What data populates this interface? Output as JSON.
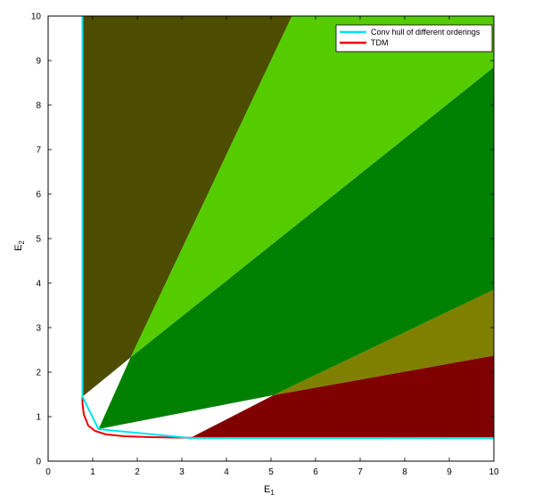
{
  "chart_data": {
    "type": "area",
    "xlabel": "E",
    "xlabel_sub": "1",
    "ylabel": "E",
    "ylabel_sub": "2",
    "xlim": [
      0,
      10
    ],
    "ylim": [
      0,
      10
    ],
    "xticks": [
      "0",
      "1",
      "2",
      "3",
      "4",
      "5",
      "6",
      "7",
      "8",
      "9",
      "10"
    ],
    "yticks": [
      "0",
      "1",
      "2",
      "3",
      "4",
      "5",
      "6",
      "7",
      "8",
      "9",
      "10"
    ],
    "grid": false,
    "legend_position": "top-right",
    "regions": [
      {
        "color": "#4d4d00",
        "points": [
          [
            0.77,
            10
          ],
          [
            5.47,
            10
          ],
          [
            1.85,
            2.33
          ],
          [
            1.13,
            0.72
          ],
          [
            0.77,
            1.45
          ]
        ]
      },
      {
        "color": "#55cc00",
        "points": [
          [
            5.47,
            10
          ],
          [
            10,
            10
          ],
          [
            10,
            8.85
          ],
          [
            1.85,
            2.33
          ]
        ]
      },
      {
        "color": "#008000",
        "points": [
          [
            1.85,
            2.33
          ],
          [
            10,
            8.85
          ],
          [
            10,
            3.85
          ],
          [
            5.05,
            1.48
          ],
          [
            1.13,
            0.72
          ]
        ]
      },
      {
        "color": "#808000",
        "points": [
          [
            5.05,
            1.48
          ],
          [
            10,
            3.85
          ],
          [
            10,
            2.37
          ]
        ]
      },
      {
        "color": "#800000",
        "points": [
          [
            5.05,
            1.48
          ],
          [
            10,
            2.37
          ],
          [
            10,
            0.52
          ],
          [
            3.18,
            0.52
          ]
        ]
      },
      {
        "color": "#ffffff",
        "points": [
          [
            0.77,
            1.45
          ],
          [
            1.13,
            0.72
          ],
          [
            1.85,
            2.33
          ]
        ]
      },
      {
        "color": "#ffffff",
        "points": [
          [
            1.13,
            0.72
          ],
          [
            5.05,
            1.48
          ],
          [
            3.18,
            0.52
          ]
        ]
      }
    ],
    "series": [
      {
        "name": "Conv hull of different orderings",
        "color": "#00e5ee",
        "points": [
          [
            0.77,
            10
          ],
          [
            0.77,
            1.45
          ],
          [
            1.13,
            0.72
          ],
          [
            3.18,
            0.52
          ],
          [
            10,
            0.52
          ]
        ]
      },
      {
        "name": "TDM",
        "color": "#ee0000",
        "points": [
          [
            0.77,
            10
          ],
          [
            0.77,
            1.3
          ],
          [
            0.8,
            1.05
          ],
          [
            0.9,
            0.8
          ],
          [
            1.05,
            0.68
          ],
          [
            1.3,
            0.6
          ],
          [
            1.7,
            0.56
          ],
          [
            2.3,
            0.54
          ],
          [
            3.2,
            0.525
          ],
          [
            10,
            0.52
          ]
        ]
      }
    ]
  }
}
